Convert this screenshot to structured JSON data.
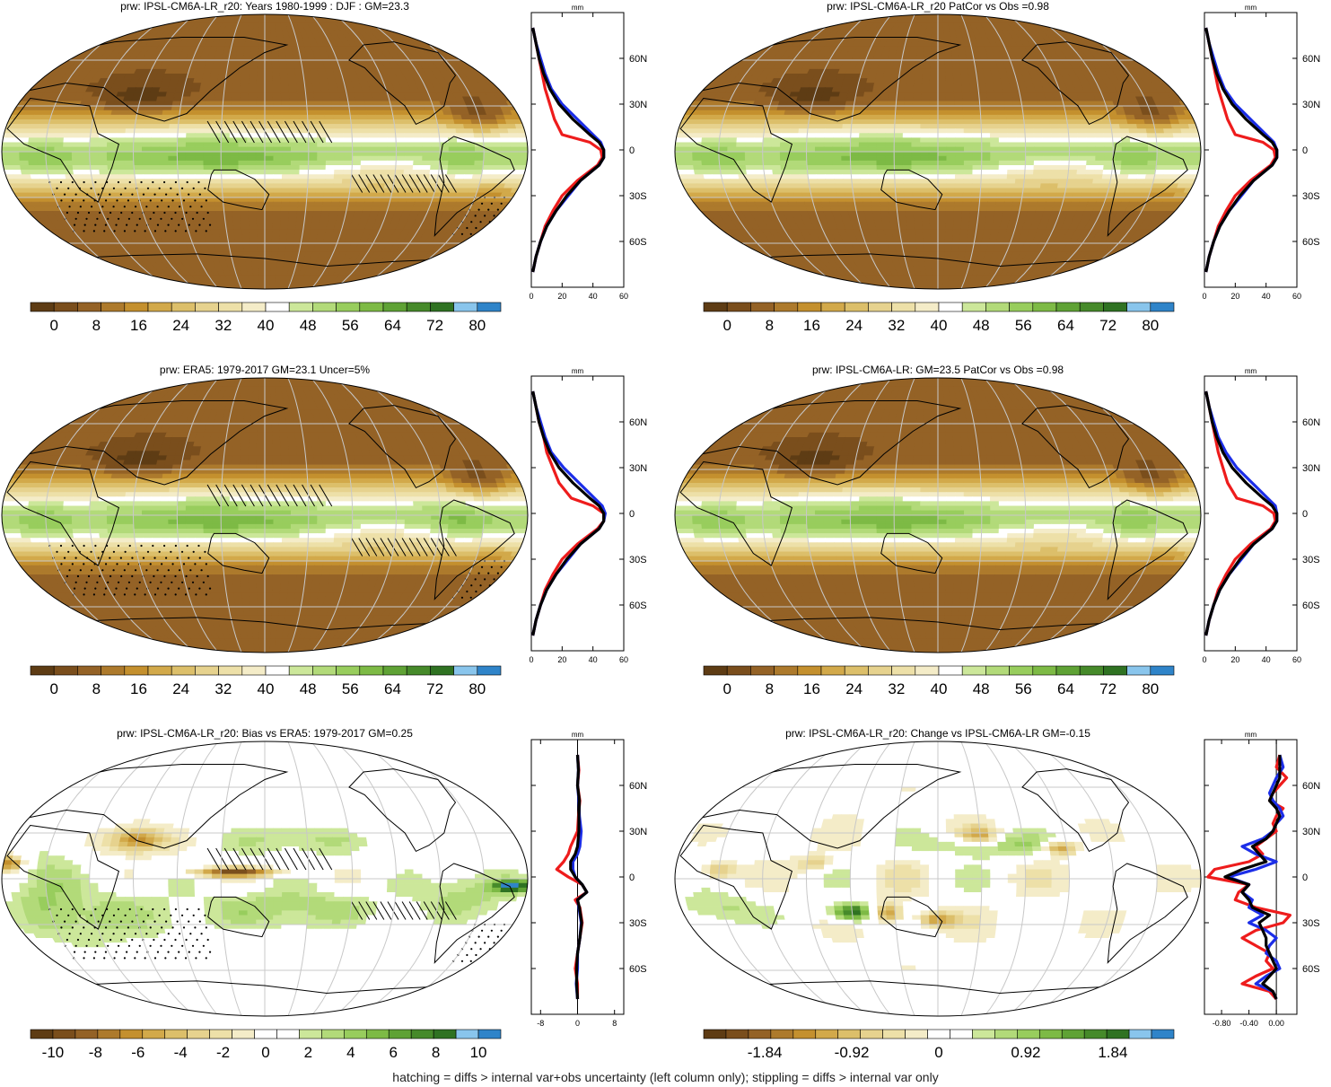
{
  "footnote": "hatching = diffs > internal var+obs uncertainty (left column only); stippling = diffs > internal var only",
  "colors": {
    "abs_scale": [
      "#5e3c14",
      "#7a4e1c",
      "#946226",
      "#ad7a2c",
      "#c4902e",
      "#d2a94a",
      "#dcbf6a",
      "#e6d28e",
      "#ede0a8",
      "#f4ecc8",
      "#ffffff",
      "#cce79a",
      "#b2da79",
      "#98cd5d",
      "#7dba45",
      "#5fa235",
      "#468a2a",
      "#2f7222",
      "#89c5ec",
      "#2f84c9"
    ],
    "diff_scale": [
      "#5e3c14",
      "#7a4e1c",
      "#946226",
      "#ad7a2c",
      "#c4902e",
      "#d2a94a",
      "#dcbf6a",
      "#e6d28e",
      "#ede0a8",
      "#f4ecc8",
      "#ffffff",
      "#ffffff",
      "#cce79a",
      "#b2da79",
      "#98cd5d",
      "#7dba45",
      "#5fa235",
      "#468a2a",
      "#2f7222",
      "#89c5ec",
      "#2f84c9"
    ],
    "line_red": "#ee1c1c",
    "line_blue": "#1c2ee8",
    "line_black": "#000000"
  },
  "chart_data": [
    {
      "type": "heatmap",
      "title": "prw: IPSL-CM6A-LR_r20: Years 1980-1999 : DJF : GM=23.3",
      "colorbar_ticks": [
        "0",
        "8",
        "16",
        "24",
        "32",
        "40",
        "48",
        "56",
        "64",
        "72",
        "80"
      ],
      "field": "model_djf",
      "hatching": true,
      "profile": {
        "type": "line",
        "unit": "mm",
        "xticks": [
          "0",
          "20",
          "40",
          "60"
        ],
        "xlim": [
          0,
          60
        ],
        "yticks": [
          "60N",
          "30N",
          "0",
          "30S",
          "60S"
        ],
        "ylim": [
          -90,
          90
        ],
        "lat": [
          80,
          70,
          60,
          50,
          40,
          30,
          20,
          10,
          5,
          0,
          -5,
          -10,
          -20,
          -30,
          -40,
          -50,
          -60,
          -70,
          -80
        ],
        "series": [
          {
            "color": "red",
            "values": [
              1,
              3,
              5,
              7,
              9,
              12,
              15,
              20,
              38,
              45,
              46,
              43,
              30,
              20,
              14,
              9,
              6,
              3,
              1
            ]
          },
          {
            "color": "blue",
            "values": [
              1,
              3,
              6,
              9,
              13,
              20,
              30,
              40,
              45,
              47,
              47,
              44,
              32,
              24,
              16,
              10,
              6,
              3,
              1
            ]
          },
          {
            "color": "black",
            "values": [
              1,
              3,
              5,
              8,
              12,
              18,
              27,
              38,
              44,
              47,
              47,
              44,
              32,
              23,
              16,
              10,
              6,
              3,
              1
            ]
          }
        ]
      }
    },
    {
      "type": "heatmap",
      "title": "prw: IPSL-CM6A-LR_r20 PatCor vs Obs =0.98",
      "colorbar_ticks": [
        "0",
        "8",
        "16",
        "24",
        "32",
        "40",
        "48",
        "56",
        "64",
        "72",
        "80"
      ],
      "field": "model_djf",
      "hatching": false,
      "profile": {
        "type": "line",
        "unit": "mm",
        "xticks": [
          "0",
          "20",
          "40",
          "60"
        ],
        "xlim": [
          0,
          60
        ],
        "yticks": [
          "60N",
          "30N",
          "0",
          "30S",
          "60S"
        ],
        "ylim": [
          -90,
          90
        ],
        "lat": [
          80,
          70,
          60,
          50,
          40,
          30,
          20,
          10,
          5,
          0,
          -5,
          -10,
          -20,
          -30,
          -40,
          -50,
          -60,
          -70,
          -80
        ],
        "series": [
          {
            "color": "red",
            "values": [
              1,
              3,
              5,
              7,
              9,
              12,
              15,
              20,
              38,
              45,
              46,
              43,
              30,
              20,
              14,
              9,
              6,
              3,
              1
            ]
          },
          {
            "color": "blue",
            "values": [
              1,
              3,
              6,
              9,
              13,
              20,
              30,
              40,
              45,
              47,
              47,
              44,
              32,
              24,
              16,
              10,
              6,
              3,
              1
            ]
          },
          {
            "color": "black",
            "values": [
              1,
              3,
              5,
              8,
              12,
              18,
              27,
              38,
              44,
              47,
              47,
              44,
              32,
              23,
              16,
              10,
              6,
              3,
              1
            ]
          }
        ]
      }
    },
    {
      "type": "heatmap",
      "title": "prw: ERA5: 1979-2017 GM=23.1 Uncer=5%",
      "colorbar_ticks": [
        "0",
        "8",
        "16",
        "24",
        "32",
        "40",
        "48",
        "56",
        "64",
        "72",
        "80"
      ],
      "field": "obs",
      "hatching": true,
      "profile": {
        "type": "line",
        "unit": "mm",
        "xticks": [
          "0",
          "20",
          "40",
          "60"
        ],
        "xlim": [
          0,
          60
        ],
        "yticks": [
          "60N",
          "30N",
          "0",
          "30S",
          "60S"
        ],
        "ylim": [
          -90,
          90
        ],
        "lat": [
          80,
          70,
          60,
          50,
          40,
          30,
          20,
          10,
          5,
          0,
          -5,
          -10,
          -20,
          -30,
          -40,
          -50,
          -60,
          -70,
          -80
        ],
        "series": [
          {
            "color": "red",
            "values": [
              1,
              3,
              5,
              8,
              10,
              14,
              18,
              26,
              40,
              47,
              47,
              43,
              30,
              20,
              14,
              9,
              6,
              3,
              1
            ]
          },
          {
            "color": "blue",
            "values": [
              1,
              3,
              6,
              9,
              13,
              21,
              31,
              41,
              46,
              48,
              47,
              44,
              32,
              24,
              16,
              10,
              6,
              3,
              1
            ]
          },
          {
            "color": "black",
            "values": [
              1,
              3,
              5,
              8,
              12,
              18,
              27,
              38,
              44,
              47,
              47,
              44,
              32,
              23,
              16,
              10,
              6,
              3,
              1
            ]
          }
        ]
      }
    },
    {
      "type": "heatmap",
      "title": "prw: IPSL-CM6A-LR: GM=23.5 PatCor vs Obs =0.98",
      "colorbar_ticks": [
        "0",
        "8",
        "16",
        "24",
        "32",
        "40",
        "48",
        "56",
        "64",
        "72",
        "80"
      ],
      "field": "model_djf",
      "hatching": false,
      "profile": {
        "type": "line",
        "unit": "mm",
        "xticks": [
          "0",
          "20",
          "40",
          "60"
        ],
        "xlim": [
          0,
          60
        ],
        "yticks": [
          "60N",
          "30N",
          "0",
          "30S",
          "60S"
        ],
        "ylim": [
          -90,
          90
        ],
        "lat": [
          80,
          70,
          60,
          50,
          40,
          30,
          20,
          10,
          5,
          0,
          -5,
          -10,
          -20,
          -30,
          -40,
          -50,
          -60,
          -70,
          -80
        ],
        "series": [
          {
            "color": "red",
            "values": [
              1,
              3,
              5,
              7,
              9,
              12,
              15,
              21,
              38,
              45,
              46,
              43,
              30,
              20,
              14,
              9,
              6,
              3,
              1
            ]
          },
          {
            "color": "blue",
            "values": [
              1,
              3,
              6,
              9,
              14,
              21,
              31,
              41,
              46,
              47,
              47,
              44,
              32,
              24,
              16,
              10,
              6,
              3,
              1
            ]
          },
          {
            "color": "black",
            "values": [
              1,
              3,
              5,
              8,
              12,
              18,
              27,
              38,
              44,
              47,
              47,
              44,
              32,
              23,
              16,
              10,
              6,
              3,
              1
            ]
          }
        ]
      }
    },
    {
      "type": "heatmap",
      "title": "prw: IPSL-CM6A-LR_r20: Bias vs ERA5: 1979-2017 GM=0.25",
      "colorbar_ticks": [
        "-10",
        "-8",
        "-6",
        "-4",
        "-2",
        "0",
        "2",
        "4",
        "6",
        "8",
        "10"
      ],
      "field": "bias",
      "hatching": true,
      "profile": {
        "type": "line",
        "unit": "mm",
        "xticks": [
          "-8",
          "0",
          "8"
        ],
        "xlim": [
          -10,
          10
        ],
        "yticks": [
          "60N",
          "30N",
          "0",
          "30S",
          "60S"
        ],
        "ylim": [
          -90,
          90
        ],
        "lat": [
          80,
          70,
          60,
          50,
          40,
          30,
          20,
          15,
          10,
          5,
          0,
          -5,
          -10,
          -15,
          -20,
          -30,
          -40,
          -50,
          -60,
          -70,
          -80
        ],
        "series": [
          {
            "color": "red",
            "values": [
              0,
              0.3,
              0,
              0.5,
              0.2,
              0,
              -1.5,
              -2,
              -3,
              -4.5,
              -2,
              1,
              2,
              -0.5,
              0.5,
              1,
              0.5,
              0,
              -0.5,
              0,
              0
            ]
          },
          {
            "color": "blue",
            "values": [
              0,
              0.2,
              0,
              0.3,
              0.4,
              0.8,
              0.5,
              0,
              -1,
              -1,
              -0.5,
              1,
              2,
              0,
              0.3,
              0.8,
              0.5,
              0,
              0,
              -0.3,
              0
            ]
          },
          {
            "color": "black",
            "values": [
              0,
              0.2,
              0,
              0.4,
              0.3,
              0.3,
              0,
              -0.5,
              -1.5,
              -1.5,
              -0.5,
              1,
              2,
              0,
              0.4,
              0.9,
              0.5,
              0,
              -0.2,
              -0.2,
              0
            ]
          }
        ]
      }
    },
    {
      "type": "heatmap",
      "title": "prw: IPSL-CM6A-LR_r20: Change vs IPSL-CM6A-LR GM=-0.15",
      "colorbar_ticks": [
        "-1.84",
        "-0.92",
        "0",
        "0.92",
        "1.84"
      ],
      "field": "change",
      "hatching": false,
      "profile": {
        "type": "line",
        "unit": "mm",
        "xticks": [
          "-0.80",
          "-0.40",
          "0.00"
        ],
        "xlim": [
          -1.05,
          0.3
        ],
        "yticks": [
          "60N",
          "30N",
          "0",
          "30S",
          "60S"
        ],
        "ylim": [
          -90,
          90
        ],
        "lat": [
          80,
          72,
          65,
          60,
          55,
          50,
          45,
          40,
          35,
          30,
          25,
          20,
          15,
          10,
          5,
          0,
          -5,
          -10,
          -15,
          -20,
          -25,
          -30,
          -35,
          -40,
          -45,
          -50,
          -55,
          -60,
          -65,
          -70,
          -75,
          -80
        ],
        "series": [
          {
            "color": "red",
            "values": [
              0.05,
              0,
              0.15,
              0.05,
              -0.05,
              -0.1,
              0.1,
              0,
              -0.05,
              0,
              -0.15,
              -0.3,
              -0.2,
              -0.4,
              -0.9,
              -1.0,
              -0.4,
              -0.55,
              -0.6,
              -0.3,
              0.2,
              0.1,
              -0.3,
              -0.5,
              -0.3,
              -0.1,
              -0.15,
              -0.05,
              -0.3,
              -0.5,
              -0.1,
              0
            ]
          },
          {
            "color": "blue",
            "values": [
              0.05,
              0.1,
              0,
              -0.05,
              -0.1,
              -0.05,
              0.05,
              0.1,
              0,
              -0.05,
              -0.2,
              -0.5,
              -0.3,
              0,
              -0.3,
              -0.7,
              -0.4,
              -0.5,
              -0.35,
              -0.4,
              -0.2,
              -0.4,
              -0.15,
              0,
              -0.1,
              -0.15,
              0,
              0.05,
              -0.15,
              -0.3,
              -0.05,
              0
            ]
          },
          {
            "color": "black",
            "values": [
              0.05,
              0.05,
              0.05,
              0,
              -0.05,
              -0.1,
              0,
              0.05,
              0,
              -0.05,
              -0.15,
              -0.35,
              -0.25,
              -0.15,
              -0.5,
              -0.75,
              -0.4,
              -0.5,
              -0.4,
              -0.35,
              -0.1,
              -0.25,
              -0.2,
              -0.15,
              -0.15,
              -0.1,
              -0.05,
              0,
              -0.1,
              -0.2,
              -0.05,
              0
            ]
          }
        ]
      }
    }
  ]
}
